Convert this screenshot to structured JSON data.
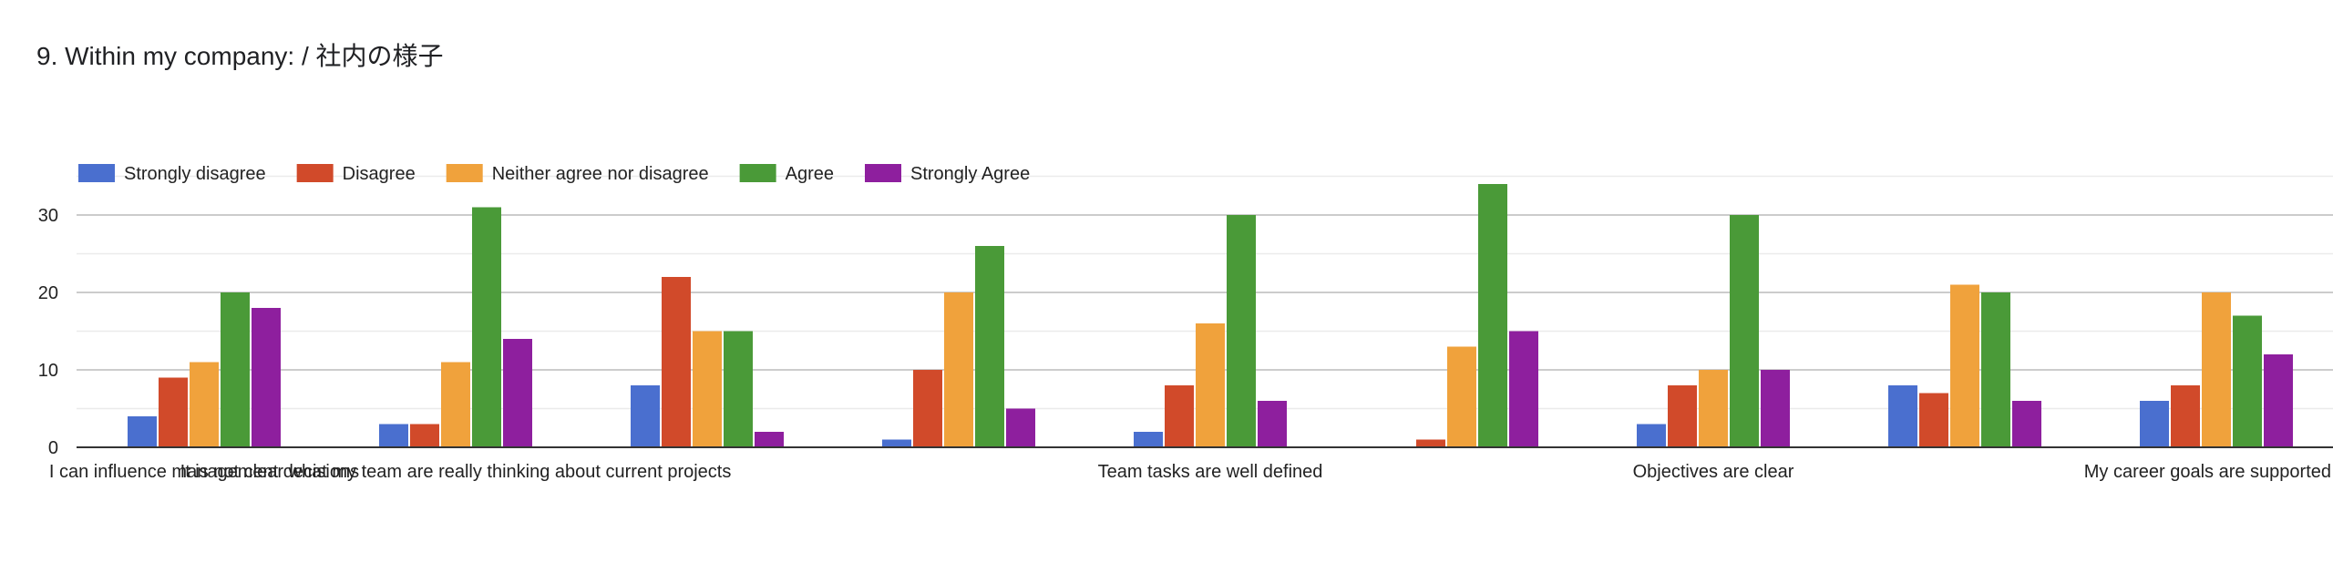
{
  "title": "9. Within my company: / 社内の様子",
  "chart_data": {
    "type": "bar",
    "series": [
      {
        "name": "Strongly disagree",
        "color": "#4A6FCF",
        "values": [
          4,
          3,
          8,
          1,
          2,
          0,
          3,
          8,
          6
        ]
      },
      {
        "name": "Disagree",
        "color": "#D14A2A",
        "values": [
          9,
          3,
          22,
          10,
          8,
          1,
          8,
          7,
          8
        ]
      },
      {
        "name": "Neither agree nor disagree",
        "color": "#F0A23C",
        "values": [
          11,
          11,
          15,
          20,
          16,
          13,
          10,
          21,
          20
        ]
      },
      {
        "name": "Agree",
        "color": "#4A9A38",
        "values": [
          20,
          31,
          15,
          26,
          30,
          34,
          30,
          20,
          17
        ]
      },
      {
        "name": "Strongly Agree",
        "color": "#8E1F9E",
        "values": [
          18,
          14,
          2,
          5,
          6,
          15,
          10,
          6,
          12
        ]
      }
    ],
    "category_labels": [
      {
        "group": 0,
        "text": "I can influence management decisions"
      },
      {
        "group": 1,
        "text": "It is not clear what my team are really thinking about current projects"
      },
      {
        "group": 4,
        "text": "Team tasks are well defined"
      },
      {
        "group": 6,
        "text": "Objectives are clear"
      },
      {
        "group": 8,
        "text": "My career goals are supported"
      }
    ],
    "y_ticks": [
      0,
      10,
      20,
      30
    ],
    "ylim": [
      0,
      35
    ],
    "grid": true,
    "legend_position": "top-left"
  }
}
